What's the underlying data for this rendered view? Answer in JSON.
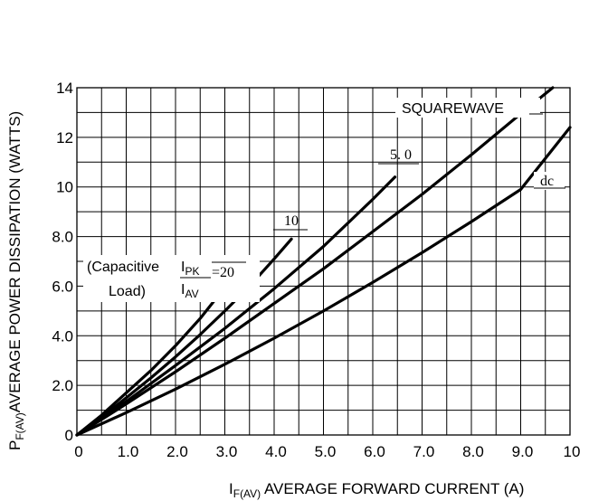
{
  "chart_data": {
    "type": "line",
    "xlabel": {
      "main": "I",
      "sub": "F(AV)",
      "rest": " AVERAGE FORWARD CURRENT (A)"
    },
    "ylabel": {
      "main": "P",
      "sub": "F(AV)",
      "rest": "AVERAGE POWER DISSIPATION (WATTS)"
    },
    "xlim": [
      0,
      10
    ],
    "ylim": [
      0,
      14
    ],
    "x_ticks": [
      {
        "value": 0,
        "label": "0"
      },
      {
        "value": 1,
        "label": "1.0"
      },
      {
        "value": 2,
        "label": "2.0"
      },
      {
        "value": 3,
        "label": "3.0"
      },
      {
        "value": 4,
        "label": "4.0"
      },
      {
        "value": 5,
        "label": "5.0"
      },
      {
        "value": 6,
        "label": "6.0"
      },
      {
        "value": 7,
        "label": "7.0"
      },
      {
        "value": 8,
        "label": "8.0"
      },
      {
        "value": 9,
        "label": "9.0"
      },
      {
        "value": 10,
        "label": "10"
      }
    ],
    "y_ticks": [
      {
        "value": 0,
        "label": "0"
      },
      {
        "value": 2,
        "label": "2.0"
      },
      {
        "value": 4,
        "label": "4.0"
      },
      {
        "value": 6,
        "label": "6.0"
      },
      {
        "value": 8,
        "label": "8.0"
      },
      {
        "value": 10,
        "label": "10"
      },
      {
        "value": 12,
        "label": "12"
      },
      {
        "value": 14,
        "label": "14"
      }
    ],
    "grid": true,
    "series": [
      {
        "name": "=20",
        "x": [
          0,
          0.5,
          1.0,
          1.5,
          2.0,
          2.5,
          2.9
        ],
        "y": [
          0,
          0.8,
          1.7,
          2.6,
          3.6,
          4.7,
          5.7
        ]
      },
      {
        "name": "10",
        "x": [
          0,
          0.5,
          1.0,
          1.5,
          2.0,
          2.5,
          3.0,
          3.5,
          4.0,
          4.35
        ],
        "y": [
          0,
          0.72,
          1.5,
          2.3,
          3.15,
          4.05,
          5.0,
          6.0,
          7.1,
          7.9
        ]
      },
      {
        "name": "5. 0",
        "x": [
          0,
          1.0,
          2.0,
          3.0,
          4.0,
          5.0,
          6.0,
          6.45
        ],
        "y": [
          0,
          1.35,
          2.8,
          4.3,
          5.9,
          7.6,
          9.5,
          10.4
        ]
      },
      {
        "name": "SQUAREWAVE",
        "x": [
          0,
          1.0,
          2.0,
          3.0,
          4.0,
          5.0,
          6.0,
          7.0,
          8.0,
          9.0,
          9.65
        ],
        "y": [
          0,
          1.25,
          2.55,
          3.9,
          5.3,
          6.7,
          8.2,
          9.7,
          11.3,
          12.95,
          14.0
        ]
      },
      {
        "name": "dc",
        "x": [
          0,
          1.0,
          2.0,
          3.0,
          4.0,
          5.0,
          6.0,
          7.0,
          8.0,
          9.0,
          10.0
        ],
        "y": [
          0,
          0.9,
          1.85,
          2.85,
          3.9,
          5.0,
          6.15,
          7.35,
          8.6,
          9.9,
          12.4
        ]
      }
    ],
    "annotation": {
      "line1": "(Capacitive",
      "line2": "Load)",
      "ipk": {
        "main": "I",
        "sub": "PK"
      },
      "iav": {
        "main": "I",
        "sub": "AV"
      }
    }
  }
}
